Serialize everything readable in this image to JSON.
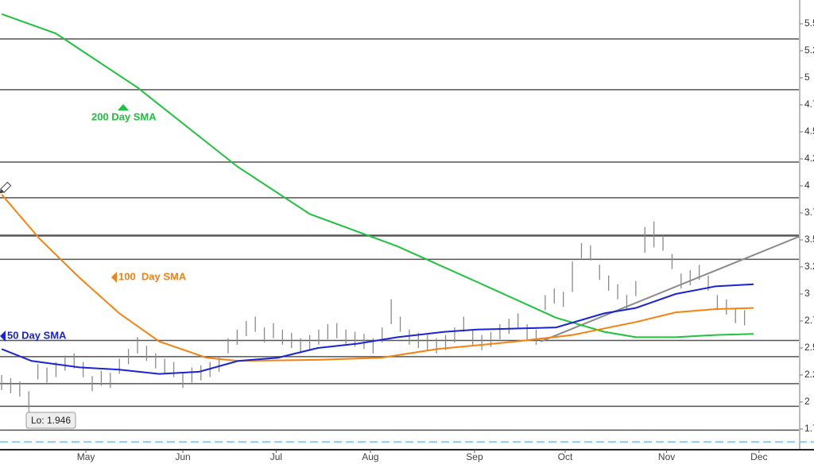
{
  "chart_data": {
    "type": "ohlc",
    "bar_color": "#8a8a8a",
    "ylim": [
      1.566,
      5.72
    ],
    "yticks": [
      5.5,
      5.25,
      5,
      4.75,
      4.5,
      4.25,
      4,
      3.75,
      3.5,
      3.25,
      3,
      2.75,
      2.5,
      2.25,
      2,
      1.75
    ],
    "xlim": [
      -0.18,
      88
    ],
    "xticks": [
      {
        "value": 9.3,
        "label": "May"
      },
      {
        "value": 20,
        "label": "Jun"
      },
      {
        "value": 30.3,
        "label": "Jul"
      },
      {
        "value": 40.7,
        "label": "Aug"
      },
      {
        "value": 52.2,
        "label": "Sep"
      },
      {
        "value": 62.2,
        "label": "Oct"
      },
      {
        "value": 73.4,
        "label": "Nov"
      },
      {
        "value": 83.6,
        "label": "Dec"
      }
    ],
    "high": [
      2.25,
      2.22,
      2.19,
      2.1,
      2.35,
      2.32,
      2.37,
      2.43,
      2.45,
      2.37,
      2.24,
      2.29,
      2.27,
      2.4,
      2.49,
      2.6,
      2.52,
      2.45,
      2.4,
      2.37,
      2.27,
      2.32,
      2.34,
      2.37,
      2.42,
      2.59,
      2.67,
      2.75,
      2.79,
      2.69,
      2.73,
      2.67,
      2.64,
      2.59,
      2.62,
      2.67,
      2.72,
      2.73,
      2.67,
      2.65,
      2.63,
      2.59,
      2.69,
      2.95,
      2.79,
      2.67,
      2.64,
      2.62,
      2.59,
      2.62,
      2.69,
      2.79,
      2.67,
      2.62,
      2.65,
      2.72,
      2.77,
      2.82,
      2.72,
      2.67,
      2.99,
      3.05,
      3.02,
      3.3,
      3.47,
      3.45,
      3.27,
      3.17,
      3.09,
      2.99,
      3.12,
      3.62,
      3.67,
      3.54,
      3.37,
      3.19,
      3.22,
      3.27,
      3.17,
      2.99,
      2.95,
      2.87,
      2.85
    ],
    "low": [
      2.11,
      2.08,
      2.05,
      1.946,
      2.21,
      2.18,
      2.23,
      2.29,
      2.31,
      2.23,
      2.1,
      2.15,
      2.13,
      2.26,
      2.35,
      2.45,
      2.38,
      2.31,
      2.26,
      2.23,
      2.13,
      2.18,
      2.2,
      2.23,
      2.28,
      2.45,
      2.53,
      2.61,
      2.65,
      2.55,
      2.59,
      2.53,
      2.5,
      2.45,
      2.48,
      2.53,
      2.58,
      2.59,
      2.53,
      2.51,
      2.49,
      2.45,
      2.55,
      2.72,
      2.65,
      2.53,
      2.5,
      2.48,
      2.45,
      2.48,
      2.55,
      2.65,
      2.53,
      2.48,
      2.51,
      2.58,
      2.63,
      2.68,
      2.58,
      2.53,
      2.85,
      2.91,
      2.88,
      3.02,
      3.33,
      3.31,
      3.13,
      3.03,
      2.95,
      2.85,
      2.98,
      3.38,
      3.43,
      3.4,
      3.23,
      3.05,
      3.08,
      3.13,
      3.03,
      2.85,
      2.81,
      2.73,
      2.71
    ],
    "series": [
      {
        "name": "200 Day SMA",
        "color": "#1fc23c",
        "x": [
          0,
          6,
          15,
          26,
          34,
          43.7,
          52.5,
          61.2,
          66.5,
          70,
          74.4,
          78.8,
          83
        ],
        "values": [
          5.59,
          5.41,
          4.91,
          4.18,
          3.74,
          3.44,
          3.11,
          2.78,
          2.65,
          2.6,
          2.6,
          2.62,
          2.63
        ]
      },
      {
        "name": "100  Day SMA",
        "color": "#f5820f",
        "x": [
          0,
          4.2,
          8.6,
          13,
          17.4,
          22.6,
          26.1,
          34.9,
          41.9,
          48.1,
          56.8,
          63,
          70,
          74.4,
          78.8,
          83
        ],
        "values": [
          3.92,
          3.51,
          3.15,
          2.82,
          2.56,
          2.41,
          2.38,
          2.39,
          2.41,
          2.49,
          2.56,
          2.62,
          2.74,
          2.83,
          2.86,
          2.87
        ]
      },
      {
        "name": "50 Day SMA",
        "color": "#1a24d6",
        "x": [
          0,
          3.3,
          8.6,
          13,
          17.4,
          21.8,
          26.1,
          30.5,
          34.9,
          39.3,
          43.7,
          48.9,
          52.5,
          56.8,
          61.2,
          66.5,
          70,
          74.4,
          78.8,
          83
        ],
        "values": [
          2.49,
          2.38,
          2.32,
          2.3,
          2.26,
          2.28,
          2.38,
          2.41,
          2.5,
          2.54,
          2.6,
          2.65,
          2.67,
          2.68,
          2.69,
          2.82,
          2.87,
          3.0,
          3.07,
          3.09
        ]
      }
    ],
    "levels": [
      5.36,
      4.89,
      4.22,
      3.89,
      3.54,
      3.32,
      2.57,
      2.42,
      2.17,
      1.96,
      1.74
    ],
    "dashed_level": 1.63,
    "trendline": {
      "x": [
        59.5,
        88
      ],
      "values": [
        2.56,
        3.53
      ]
    },
    "low_label": "Lo: 1.946"
  }
}
